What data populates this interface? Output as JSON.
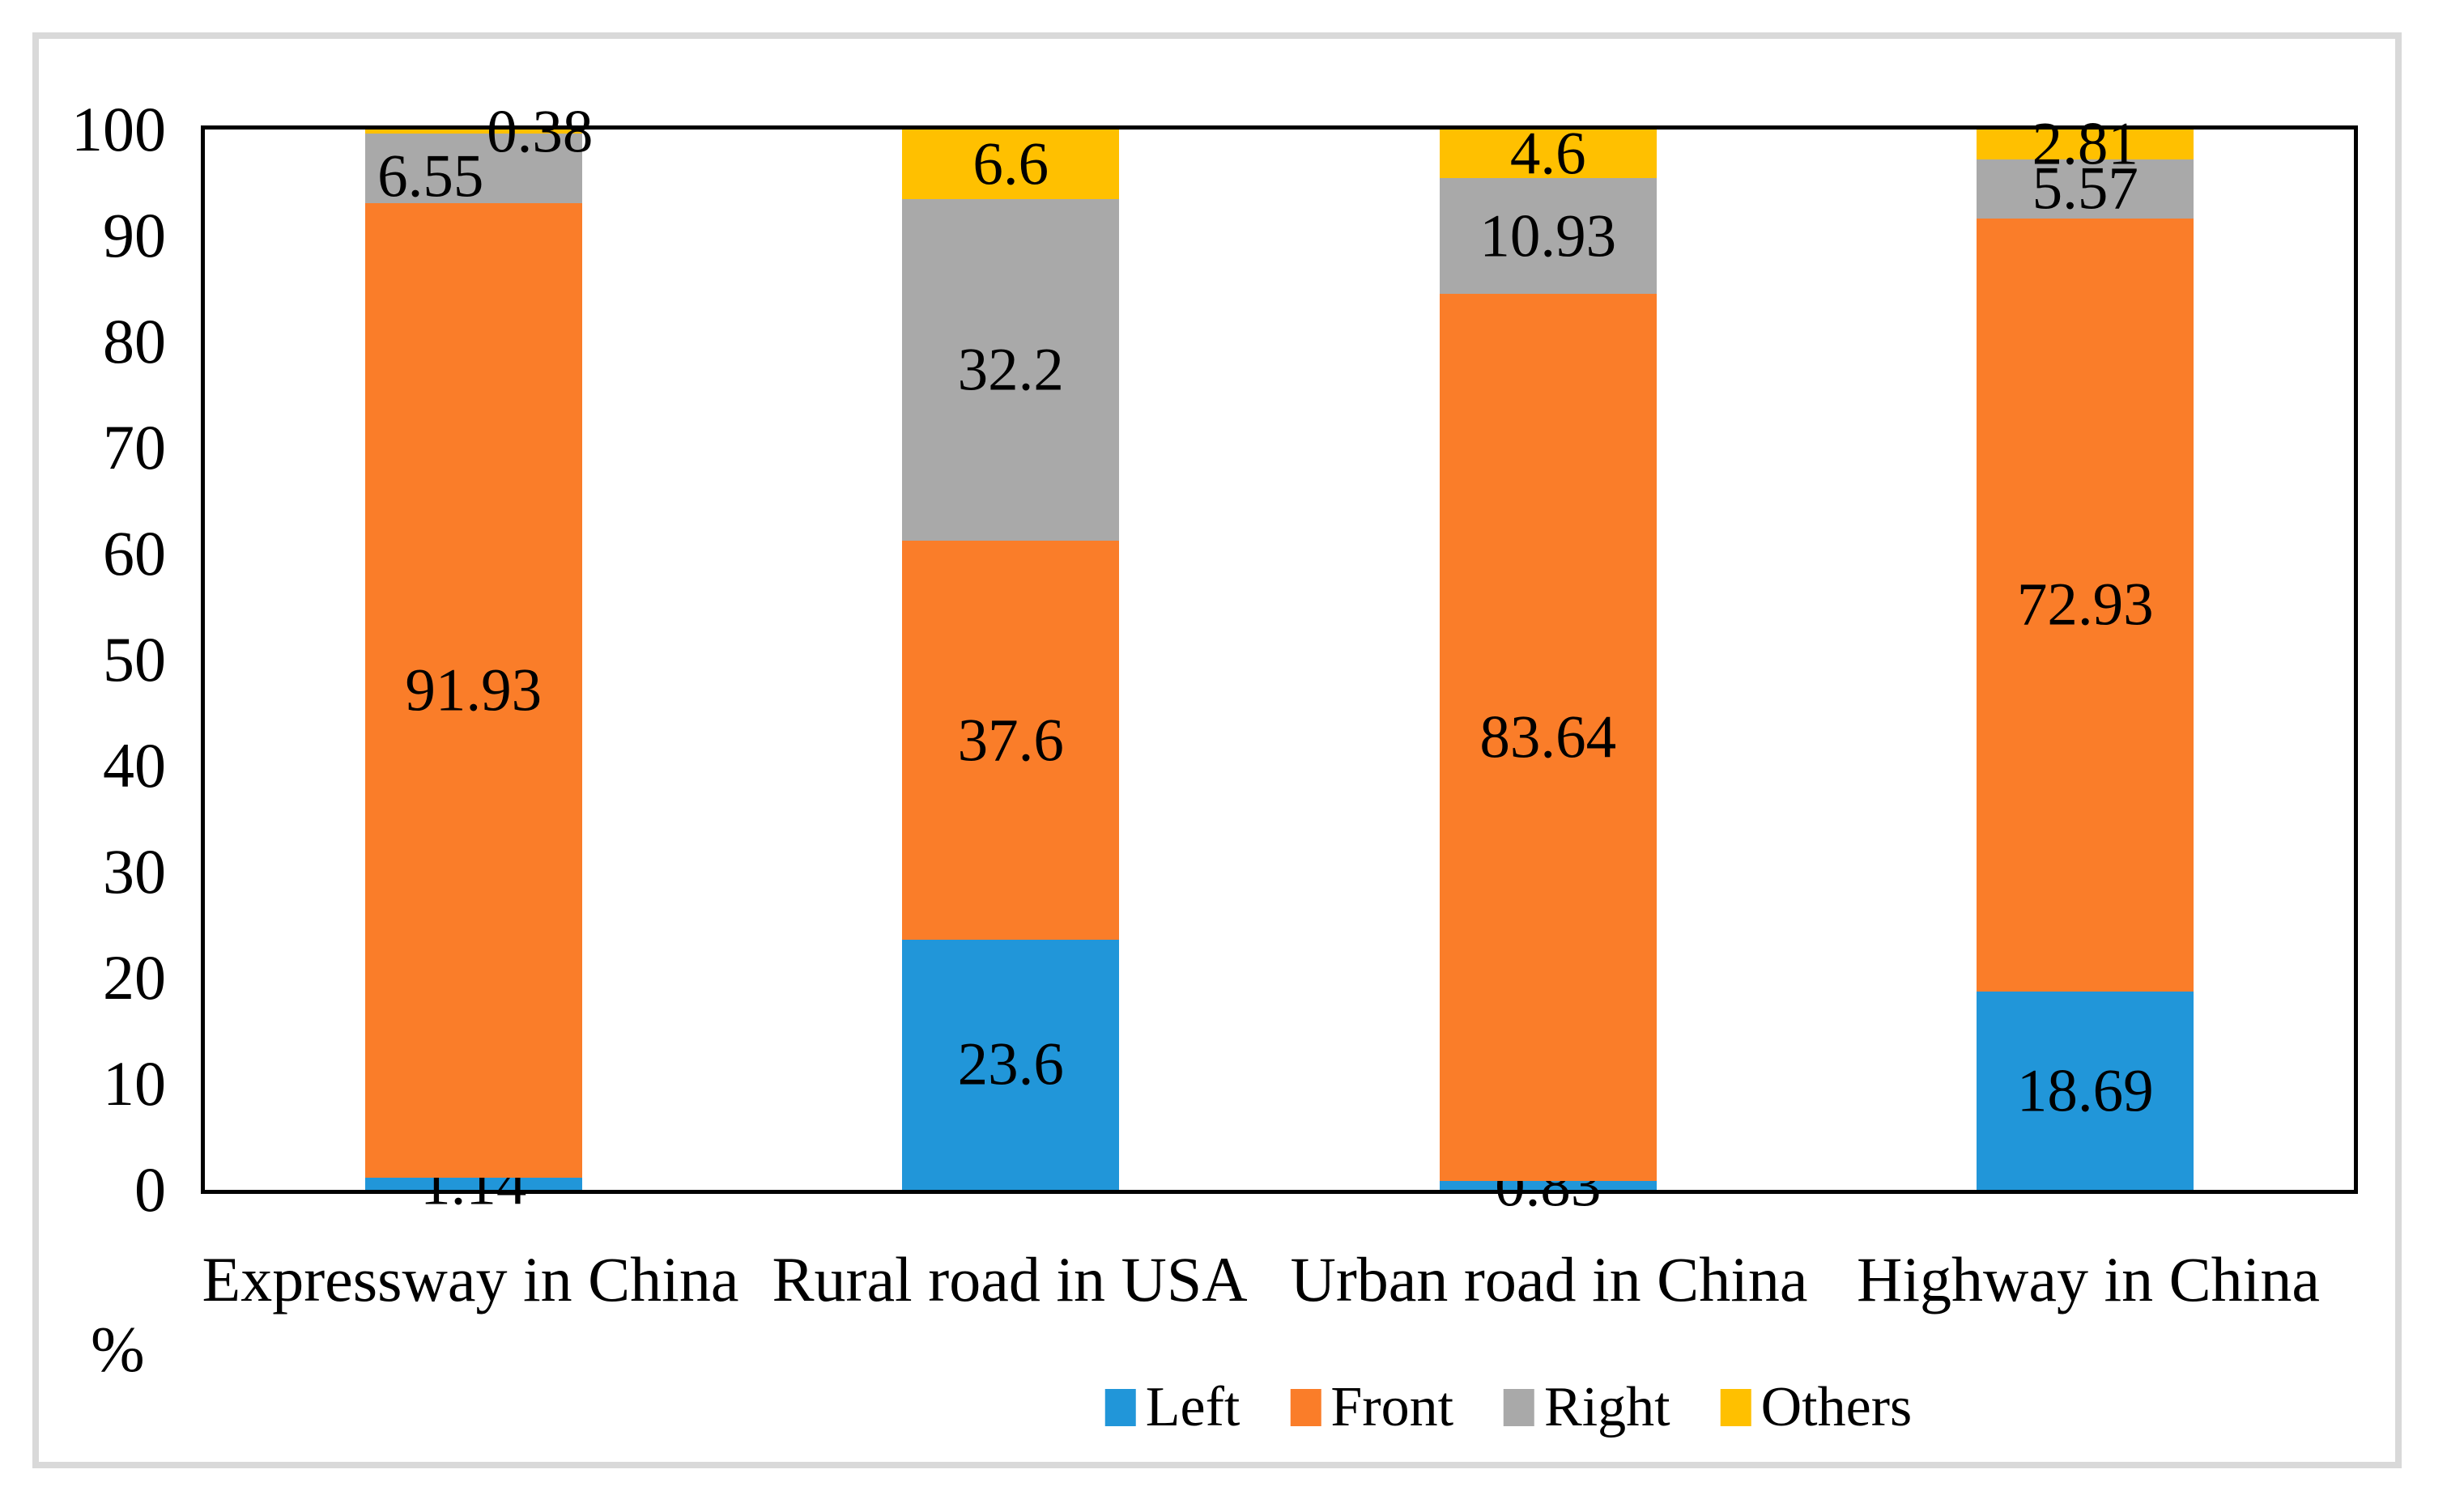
{
  "chart_data": {
    "type": "bar",
    "stacked": true,
    "title": "",
    "categories": [
      "Expressway in China",
      "Rural road in USA",
      "Urban road in China",
      "Highway in China"
    ],
    "series": [
      {
        "name": "Left",
        "color": "#2196d9",
        "values": [
          1.14,
          23.6,
          0.83,
          18.69
        ]
      },
      {
        "name": "Front",
        "color": "#fa7d29",
        "values": [
          91.93,
          37.6,
          83.64,
          72.93
        ]
      },
      {
        "name": "Right",
        "color": "#a9a9a9",
        "values": [
          6.55,
          32.2,
          10.93,
          5.57
        ]
      },
      {
        "name": "Others",
        "color": "#ffc000",
        "values": [
          0.38,
          6.6,
          4.6,
          2.81
        ]
      }
    ],
    "ylabel": "%",
    "ylim": [
      0,
      100
    ],
    "yticks": [
      0,
      10,
      20,
      30,
      40,
      50,
      60,
      70,
      80,
      90,
      100
    ],
    "grid": false,
    "legend_position": "bottom",
    "plot_border_color": "#000000",
    "frame_border_color": "#d9d9d9"
  }
}
